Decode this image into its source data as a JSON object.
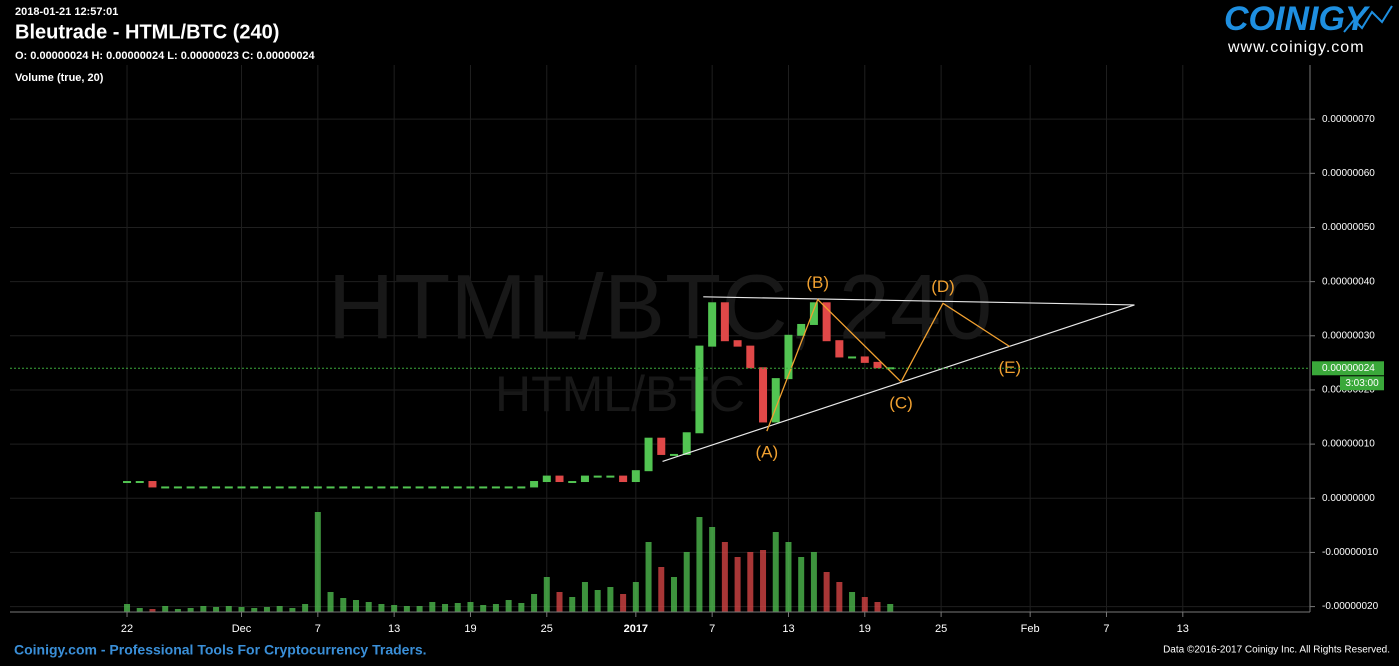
{
  "header": {
    "timestamp": "2018-01-21 12:57:01",
    "title": "Bleutrade - HTML/BTC (240)",
    "ohlc": "O: 0.00000024 H: 0.00000024 L: 0.00000023 C: 0.00000024",
    "indicator": "Volume (true, 20)",
    "watermark": "HTML/BTC, 240",
    "watermark_sub": "HTML/BTC"
  },
  "logo": {
    "name": "COINIGY",
    "url": "www.coinigy.com"
  },
  "footer": {
    "left": "Coinigy.com - Professional Tools For Cryptocurrency Traders.",
    "right": "Data ©2016-2017 Coinigy Inc. All Rights Reserved."
  },
  "chart_data": {
    "type": "candlestick",
    "xlim": [
      -9.2,
      93
    ],
    "xticks": [
      {
        "value": 0,
        "label": "22"
      },
      {
        "value": 9,
        "label": "Dec"
      },
      {
        "value": 15,
        "label": "7"
      },
      {
        "value": 21,
        "label": "13"
      },
      {
        "value": 27,
        "label": "19"
      },
      {
        "value": 33,
        "label": "25"
      },
      {
        "value": 40,
        "label": "2017"
      },
      {
        "value": 46,
        "label": "7"
      },
      {
        "value": 52,
        "label": "13"
      },
      {
        "value": 58,
        "label": "19"
      },
      {
        "value": 64,
        "label": "25"
      },
      {
        "value": 71,
        "label": "Feb"
      },
      {
        "value": 77,
        "label": "7"
      },
      {
        "value": 83,
        "label": "13"
      }
    ],
    "ylim": [
      -2.1e-07,
      8e-07
    ],
    "yticks": [
      {
        "value": -2e-07,
        "label": "-0.00000020"
      },
      {
        "value": -1e-07,
        "label": "-0.00000010"
      },
      {
        "value": 0,
        "label": "0.00000000"
      },
      {
        "value": 1e-07,
        "label": "0.00000010"
      },
      {
        "value": 2e-07,
        "label": "0.00000020"
      },
      {
        "value": 3e-07,
        "label": "0.00000030"
      },
      {
        "value": 4e-07,
        "label": "0.00000040"
      },
      {
        "value": 5e-07,
        "label": "0.00000050"
      },
      {
        "value": 6e-07,
        "label": "0.00000060"
      },
      {
        "value": 7e-07,
        "label": "0.00000070"
      }
    ],
    "grid": true,
    "up_color": "#52c452",
    "down_color": "#e04848",
    "x": [
      0,
      1,
      2,
      3,
      4,
      5,
      6,
      7,
      8,
      9,
      10,
      11,
      12,
      13,
      14,
      15,
      16,
      17,
      18,
      19,
      20,
      21,
      22,
      23,
      24,
      25,
      26,
      27,
      28,
      29,
      30,
      31,
      32,
      33,
      34,
      35,
      36,
      37,
      38,
      39,
      40,
      41,
      42,
      43,
      44,
      45,
      46,
      47,
      48,
      49,
      50,
      51,
      52,
      53,
      54,
      55,
      56,
      57,
      58,
      59,
      60
    ],
    "values": [
      3e-08,
      3e-08,
      2e-08,
      2e-08,
      2e-08,
      2e-08,
      2e-08,
      2e-08,
      2e-08,
      2e-08,
      2e-08,
      2e-08,
      2e-08,
      2e-08,
      2e-08,
      2e-08,
      2e-08,
      2e-08,
      2e-08,
      2e-08,
      2e-08,
      2e-08,
      2e-08,
      2e-08,
      2e-08,
      2e-08,
      2e-08,
      2e-08,
      2e-08,
      2e-08,
      2e-08,
      2e-08,
      3e-08,
      4e-08,
      3e-08,
      3e-08,
      4e-08,
      4e-08,
      4e-08,
      3e-08,
      5e-08,
      1.1e-07,
      8e-08,
      8e-08,
      1.2e-07,
      2.8e-07,
      3.6e-07,
      2.9e-07,
      2.8e-07,
      2.4e-07,
      1.4e-07,
      2.2e-07,
      3e-07,
      3.2e-07,
      3.6e-07,
      2.9e-07,
      2.6e-07,
      2.6e-07,
      2.5e-07,
      2.4e-07,
      2.4e-07
    ],
    "volume": {
      "name": "Volume (true, 20)",
      "vlim": [
        0,
        100
      ],
      "values": [
        8,
        4,
        3,
        6,
        3,
        4,
        6,
        5,
        6,
        5,
        4,
        5,
        6,
        4,
        8,
        100,
        20,
        14,
        12,
        10,
        8,
        7,
        6,
        6,
        10,
        8,
        9,
        10,
        7,
        8,
        12,
        9,
        18,
        35,
        20,
        15,
        30,
        22,
        25,
        18,
        30,
        70,
        45,
        35,
        60,
        95,
        85,
        70,
        55,
        60,
        62,
        80,
        70,
        55,
        60,
        40,
        30,
        20,
        15,
        10,
        8
      ]
    },
    "last_price": {
      "value": 2.4e-07,
      "label": "0.00000024",
      "countdown": "3:03:00",
      "color": "#3aa83a"
    },
    "trendlines": {
      "color": "#e8e8e8",
      "lines": [
        {
          "x": [
            45.3,
            79.2
          ],
          "y": [
            3.72e-07,
            3.57e-07
          ]
        },
        {
          "x": [
            42.1,
            79.2
          ],
          "y": [
            6.8e-08,
            3.57e-07
          ]
        }
      ]
    },
    "waves": {
      "color": "#f0a030",
      "points": [
        {
          "label": "(A)",
          "x": 50.3,
          "y": 1.24e-07
        },
        {
          "label": "(B)",
          "x": 54.3,
          "y": 3.67e-07
        },
        {
          "label": "(C)",
          "x": 60.85,
          "y": 2.15e-07
        },
        {
          "label": "(D)",
          "x": 64.15,
          "y": 3.6e-07
        },
        {
          "label": "(E)",
          "x": 69.4,
          "y": 2.8e-07
        }
      ]
    }
  }
}
